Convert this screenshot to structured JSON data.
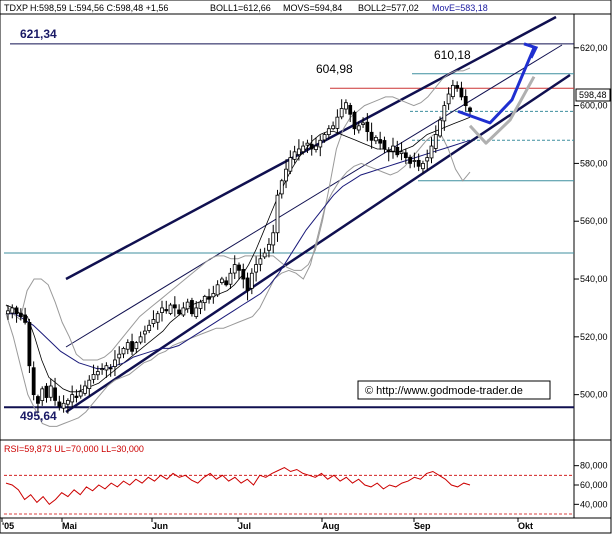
{
  "header": {
    "ticker": "TDXP",
    "ohlc": "H:598,59 L:594,56 C:598,48 +1,56",
    "boll1": "BOLL1=612,66",
    "movs": "MOVS=594,84",
    "boll2": "BOLL2=577,02",
    "move": "MovE=583,18"
  },
  "rsi_header": "RSI=59,873 UL=70,000 LL=30,000",
  "source": "© http://www.godmode-trader.de",
  "price_box": "598,48",
  "levels": {
    "resistance": "621,34",
    "support": "495,64",
    "peak1": "604,98",
    "peak2": "610,18"
  },
  "colors": {
    "candle": "#000000",
    "bollinger": "#9a9a9a",
    "sma": "#000000",
    "ema": "#1a1a7a",
    "channel": "#101050",
    "forecast_blue": "#1f2fd0",
    "forecast_gray": "#b0b0b0",
    "rsi": "#cc0000",
    "cyan_levels": "#3f8f9f",
    "red_level": "#cc3333"
  },
  "chart_data": [
    {
      "type": "candlestick",
      "title": "TDXP",
      "x_tick_labels": [
        "'05",
        "Mai",
        "Jun",
        "Jul",
        "Aug",
        "Sep",
        "Okt"
      ],
      "y_tick_labels": [
        "500,00",
        "520,00",
        "540,00",
        "560,00",
        "580,00",
        "600,00",
        "620,00"
      ],
      "ylim": [
        485,
        631
      ],
      "grid": false,
      "annotations": [
        "621,34",
        "495,64",
        "604,98",
        "610,18",
        "598,48"
      ],
      "horizontal_levels": [
        621.34,
        611,
        606,
        598,
        588,
        574,
        549,
        495.64
      ],
      "close": [
        529,
        530,
        528,
        527,
        525,
        510,
        500,
        497,
        502,
        499,
        503,
        498,
        496,
        497,
        498,
        500,
        499,
        501,
        503,
        505,
        507,
        508,
        509,
        510,
        509,
        512,
        514,
        516,
        518,
        515,
        518,
        520,
        522,
        524,
        526,
        528,
        530,
        529,
        531,
        530,
        528,
        530,
        532,
        528,
        530,
        532,
        534,
        533,
        535,
        538,
        540,
        538,
        542,
        545,
        543,
        540,
        536,
        542,
        545,
        547,
        549,
        552,
        556,
        569,
        574,
        578,
        582,
        584,
        585,
        586,
        587,
        585,
        586,
        588,
        590,
        592,
        593,
        596,
        599,
        601,
        597,
        592,
        593,
        594,
        591,
        588,
        589,
        587,
        585,
        584,
        586,
        583,
        584,
        582,
        580,
        581,
        579,
        580,
        582,
        586,
        590,
        595,
        600,
        604,
        607,
        606,
        603,
        600,
        598
      ],
      "bollinger_upper": [
        531,
        528,
        526,
        536,
        540,
        540,
        538,
        532,
        525,
        520,
        514,
        512,
        512,
        512,
        513,
        515,
        518,
        521,
        524,
        527,
        529,
        531,
        533,
        535,
        537,
        539,
        541,
        543,
        545,
        547,
        548,
        548,
        547,
        547,
        548,
        548,
        548,
        548,
        548,
        546,
        544,
        543,
        543,
        545,
        550,
        560,
        572,
        585,
        592,
        596,
        598,
        600,
        601,
        602,
        603,
        603,
        602,
        601,
        600,
        601,
        603,
        606,
        609,
        611,
        612,
        612,
        613
      ],
      "bollinger_lower": [
        528,
        520,
        510,
        500,
        495,
        490,
        489,
        489,
        490,
        491,
        492,
        494,
        497,
        500,
        503,
        505,
        506,
        507,
        509,
        511,
        512,
        514,
        515,
        517,
        518,
        519,
        520,
        521,
        522,
        523,
        523,
        524,
        525,
        526,
        527,
        530,
        535,
        540,
        542,
        543,
        542,
        540,
        545,
        555,
        565,
        570,
        574,
        577,
        579,
        580,
        579,
        578,
        577,
        576,
        577,
        579,
        582,
        585,
        588,
        590,
        590,
        585,
        578,
        574,
        577
      ],
      "sma": [
        531,
        530,
        528,
        527,
        520,
        512,
        506,
        504,
        502,
        501,
        501,
        502,
        503,
        504,
        506,
        508,
        510,
        512,
        514,
        516,
        518,
        520,
        522,
        525,
        527,
        529,
        531,
        532,
        533,
        534,
        535,
        536,
        538,
        541,
        545,
        550,
        556,
        562,
        568,
        573,
        578,
        582,
        585,
        588,
        590,
        591,
        591,
        590,
        589,
        588,
        587,
        586,
        585,
        585,
        584,
        584,
        585,
        586,
        588,
        590,
        591,
        592,
        593,
        594,
        595,
        596
      ],
      "ema": [
        528,
        528,
        526,
        524,
        521,
        518,
        515,
        513,
        511,
        510,
        509,
        509,
        510,
        511,
        513,
        514,
        515,
        516,
        516,
        517,
        519,
        521,
        523,
        525,
        527,
        529,
        531,
        533,
        535,
        538,
        542,
        547,
        552,
        557,
        561,
        565,
        569,
        572,
        574,
        576,
        577,
        578,
        579,
        580,
        581,
        582,
        583,
        584,
        585,
        586,
        587,
        588
      ],
      "forecast_blue": [
        598,
        594,
        602,
        620
      ],
      "forecast_gray": [
        593,
        587,
        595,
        610
      ]
    },
    {
      "type": "line",
      "title": "RSI",
      "y_tick_labels": [
        "40,000",
        "60,000",
        "80,000"
      ],
      "ylim": [
        30,
        90
      ],
      "reference_lines": [
        70,
        30
      ],
      "values": [
        62,
        60,
        55,
        45,
        50,
        42,
        48,
        40,
        45,
        52,
        48,
        55,
        50,
        58,
        54,
        60,
        56,
        62,
        58,
        64,
        60,
        66,
        62,
        68,
        64,
        70,
        66,
        72,
        68,
        70,
        65,
        62,
        68,
        72,
        66,
        70,
        64,
        68,
        62,
        66,
        60,
        70,
        68,
        72,
        75,
        78,
        74,
        76,
        72,
        70,
        68,
        72,
        66,
        70,
        64,
        68,
        62,
        66,
        60,
        58,
        62,
        56,
        60,
        58,
        62,
        64,
        68,
        66,
        72,
        74,
        70,
        66,
        60,
        58,
        62,
        60
      ]
    }
  ]
}
